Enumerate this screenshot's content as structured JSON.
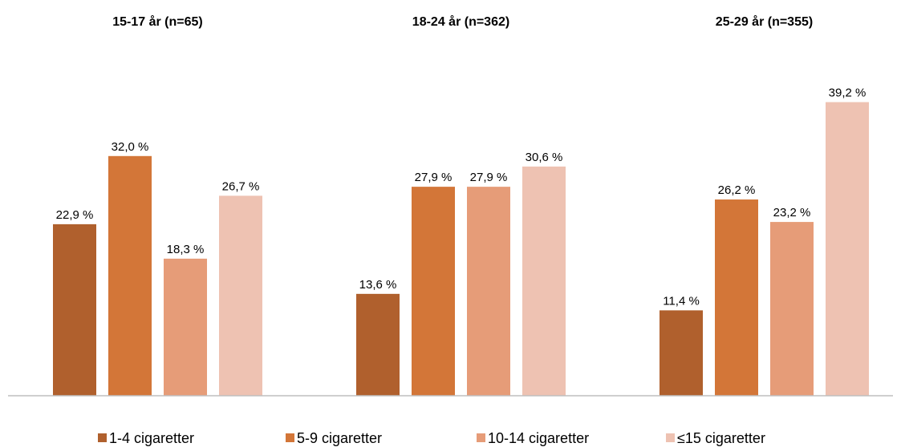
{
  "chart_data": {
    "type": "bar",
    "categories": [
      "15-17 år (n=65)",
      "18-24 år (n=362)",
      "25-29 år (n=355)"
    ],
    "series": [
      {
        "name": "1-4 cigaretter",
        "color": "#B0602D",
        "values": [
          22.9,
          13.6,
          11.4
        ],
        "labels": [
          "22,9 %",
          "13,6 %",
          "11,4 %"
        ]
      },
      {
        "name": "5-9 cigaretter",
        "color": "#D37638",
        "values": [
          32.0,
          27.9,
          26.2
        ],
        "labels": [
          "32,0 %",
          "27,9 %",
          "26,2 %"
        ]
      },
      {
        "name": "10-14 cigaretter",
        "color": "#E69C78",
        "values": [
          18.3,
          27.9,
          23.2
        ],
        "labels": [
          "18,3 %",
          "27,9 %",
          "23,2 %"
        ]
      },
      {
        "name": "≤15 cigaretter",
        "color": "#EEC2B2",
        "values": [
          26.7,
          30.6,
          39.2
        ],
        "labels": [
          "26,7 %",
          "30,6 %",
          "39,2 %"
        ]
      }
    ],
    "ylim": [
      0,
      40
    ],
    "legend": "bottom",
    "grid": false
  }
}
